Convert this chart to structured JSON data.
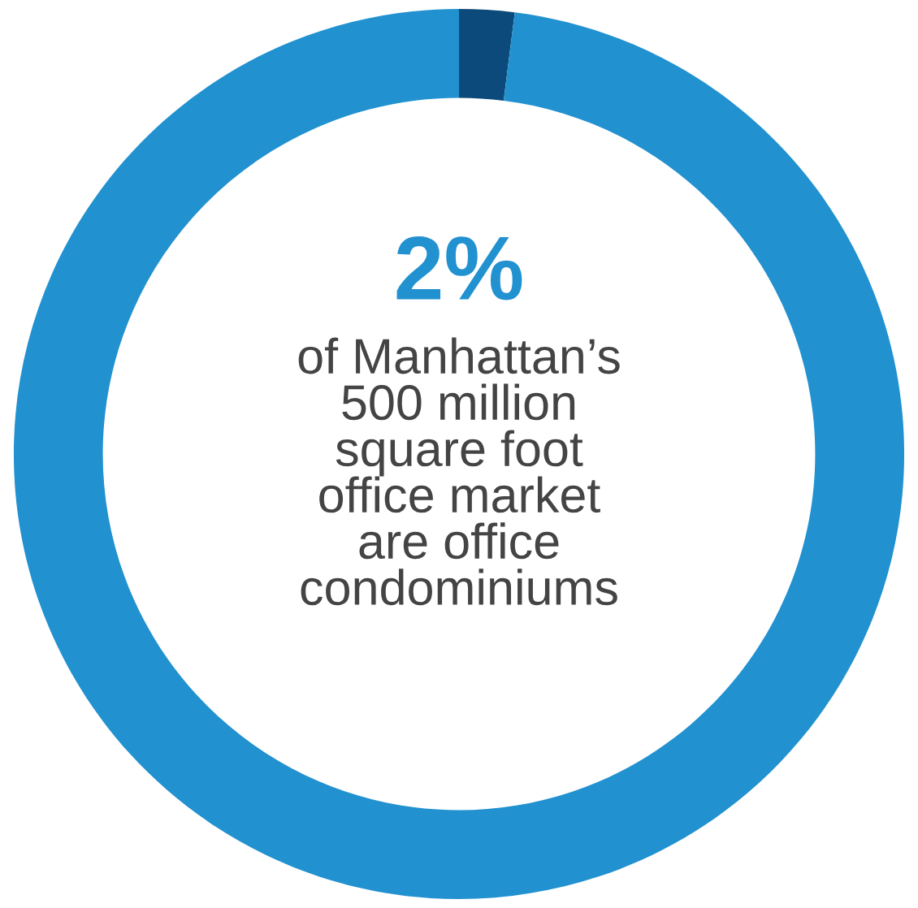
{
  "chart_data": {
    "type": "donut",
    "categories": [
      null,
      null
    ],
    "values": [
      2,
      98
    ],
    "colors": [
      "#0b4a7a",
      "#2191d0"
    ],
    "annotations": [
      "2%",
      "of Manhattan’s\n500 million\nsquare foot\noffice market\nare office\ncondominiums"
    ]
  }
}
